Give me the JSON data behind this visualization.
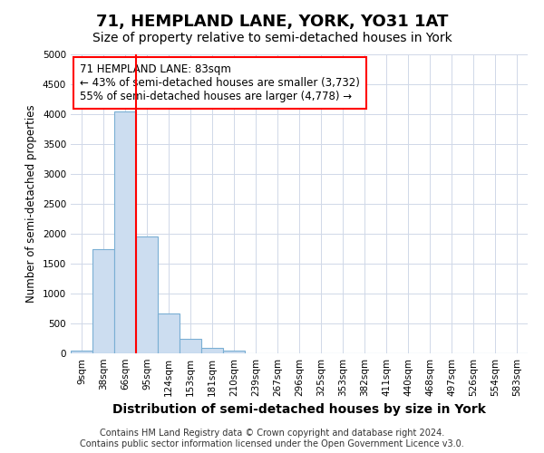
{
  "title": "71, HEMPLAND LANE, YORK, YO31 1AT",
  "subtitle": "Size of property relative to semi-detached houses in York",
  "xlabel": "Distribution of semi-detached houses by size in York",
  "ylabel": "Number of semi-detached properties",
  "categories": [
    "9sqm",
    "38sqm",
    "66sqm",
    "95sqm",
    "124sqm",
    "153sqm",
    "181sqm",
    "210sqm",
    "239sqm",
    "267sqm",
    "296sqm",
    "325sqm",
    "353sqm",
    "382sqm",
    "411sqm",
    "440sqm",
    "468sqm",
    "497sqm",
    "526sqm",
    "554sqm",
    "583sqm"
  ],
  "values": [
    50,
    1740,
    4040,
    1950,
    660,
    240,
    90,
    50,
    0,
    0,
    0,
    0,
    0,
    0,
    0,
    0,
    0,
    0,
    0,
    0,
    0
  ],
  "bar_color": "#ccddf0",
  "bar_edge_color": "#7aafd4",
  "annotation_text": "71 HEMPLAND LANE: 83sqm\n← 43% of semi-detached houses are smaller (3,732)\n55% of semi-detached houses are larger (4,778) →",
  "annotation_box_color": "white",
  "annotation_box_edge_color": "red",
  "vline_color": "red",
  "vline_x": 2.5,
  "ylim": [
    0,
    5000
  ],
  "yticks": [
    0,
    500,
    1000,
    1500,
    2000,
    2500,
    3000,
    3500,
    4000,
    4500,
    5000
  ],
  "footnote": "Contains HM Land Registry data © Crown copyright and database right 2024.\nContains public sector information licensed under the Open Government Licence v3.0.",
  "bg_color": "#ffffff",
  "plot_bg_color": "#ffffff",
  "grid_color": "#d0d8e8",
  "title_fontsize": 13,
  "subtitle_fontsize": 10,
  "xlabel_fontsize": 10,
  "ylabel_fontsize": 8.5,
  "tick_fontsize": 7.5,
  "annotation_fontsize": 8.5,
  "footnote_fontsize": 7
}
